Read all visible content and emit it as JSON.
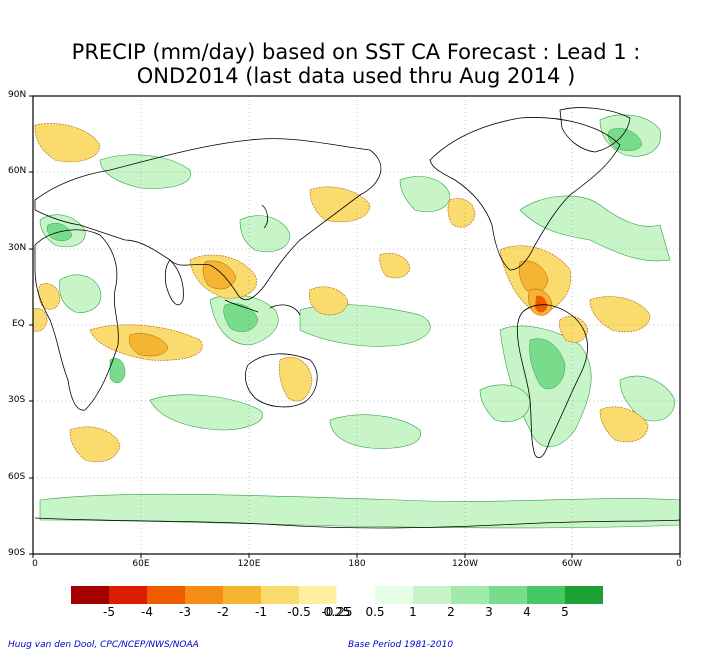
{
  "title": {
    "line1": "PRECIP (mm/day) based on SST CA Forecast : Lead 1 :",
    "line2": "OND2014 (last data used thru Aug 2014 )"
  },
  "axes": {
    "lat_ticks": [
      "90N",
      "60N",
      "30N",
      "EQ",
      "30S",
      "60S",
      "90S"
    ],
    "lon_ticks": [
      "0",
      "60E",
      "120E",
      "180",
      "120W",
      "60W",
      "0"
    ]
  },
  "colorbar": {
    "labels": [
      "-5",
      "-4",
      "-3",
      "-2",
      "-1",
      "-0.5",
      "-0.25",
      "0.25",
      "0.5",
      "1",
      "2",
      "3",
      "4",
      "5"
    ],
    "colors": [
      "#a50000",
      "#dc1e00",
      "#f05a00",
      "#f58c14",
      "#f5b432",
      "#fadc6e",
      "#fff0a0",
      "#ffffff",
      "#e6ffe6",
      "#c8f5c8",
      "#a0ebaa",
      "#78dc8c",
      "#46c864",
      "#1ea032"
    ]
  },
  "footer": {
    "credit": "Huug van den Dool, CPC/NCEP/NWS/NOAA",
    "base_period": "Base Period 1981-2010"
  },
  "map": {
    "type": "precipitation anomaly map",
    "projection": "latitude-longitude",
    "dry_color": "#f5b432",
    "wet_color": "#78dc8c"
  }
}
